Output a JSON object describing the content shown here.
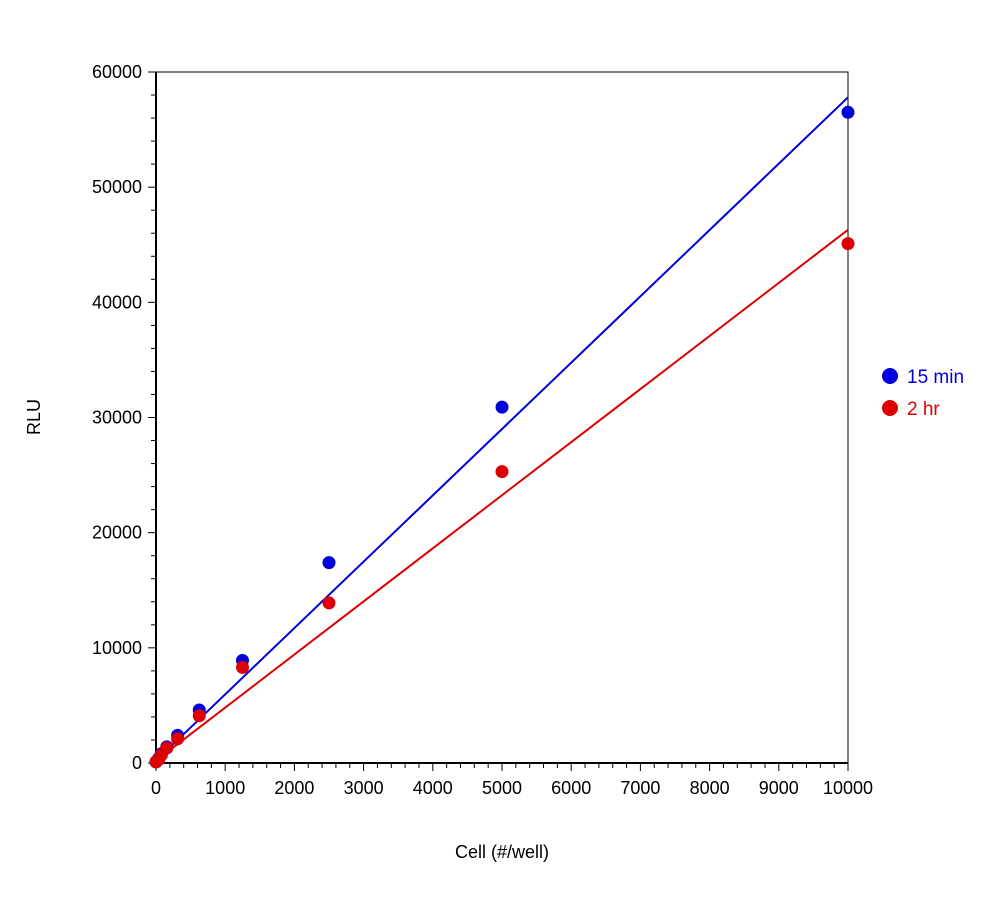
{
  "chart_data": {
    "type": "scatter",
    "xlabel": "Cell (#/well)",
    "ylabel": "RLU",
    "xlim": [
      0,
      10000
    ],
    "ylim": [
      0,
      60000
    ],
    "x_major_ticks": [
      0,
      1000,
      2000,
      3000,
      4000,
      5000,
      6000,
      7000,
      8000,
      9000,
      10000
    ],
    "y_major_ticks": [
      0,
      10000,
      20000,
      30000,
      40000,
      50000,
      60000
    ],
    "x_minor_step": 200,
    "y_minor_step": 2000,
    "grid": false,
    "legend_position": "right",
    "series": [
      {
        "name": "15 min",
        "color": "#0000dd",
        "points": [
          {
            "x": 0,
            "y": 100
          },
          {
            "x": 39,
            "y": 400
          },
          {
            "x": 78,
            "y": 800
          },
          {
            "x": 156,
            "y": 1400
          },
          {
            "x": 312,
            "y": 2400
          },
          {
            "x": 625,
            "y": 4600
          },
          {
            "x": 1250,
            "y": 8900
          },
          {
            "x": 2500,
            "y": 17400
          },
          {
            "x": 5000,
            "y": 30900
          },
          {
            "x": 10000,
            "y": 56500
          }
        ],
        "fit_line": [
          {
            "x": 0,
            "y": 200
          },
          {
            "x": 10000,
            "y": 57800
          }
        ]
      },
      {
        "name": "2 hr",
        "color": "#dd0000",
        "points": [
          {
            "x": 0,
            "y": 100
          },
          {
            "x": 39,
            "y": 300
          },
          {
            "x": 78,
            "y": 700
          },
          {
            "x": 156,
            "y": 1300
          },
          {
            "x": 312,
            "y": 2100
          },
          {
            "x": 625,
            "y": 4100
          },
          {
            "x": 1250,
            "y": 8300
          },
          {
            "x": 2500,
            "y": 13900
          },
          {
            "x": 5000,
            "y": 25300
          },
          {
            "x": 10000,
            "y": 45100
          }
        ],
        "fit_line": [
          {
            "x": 0,
            "y": 200
          },
          {
            "x": 10000,
            "y": 46300
          }
        ]
      }
    ]
  }
}
